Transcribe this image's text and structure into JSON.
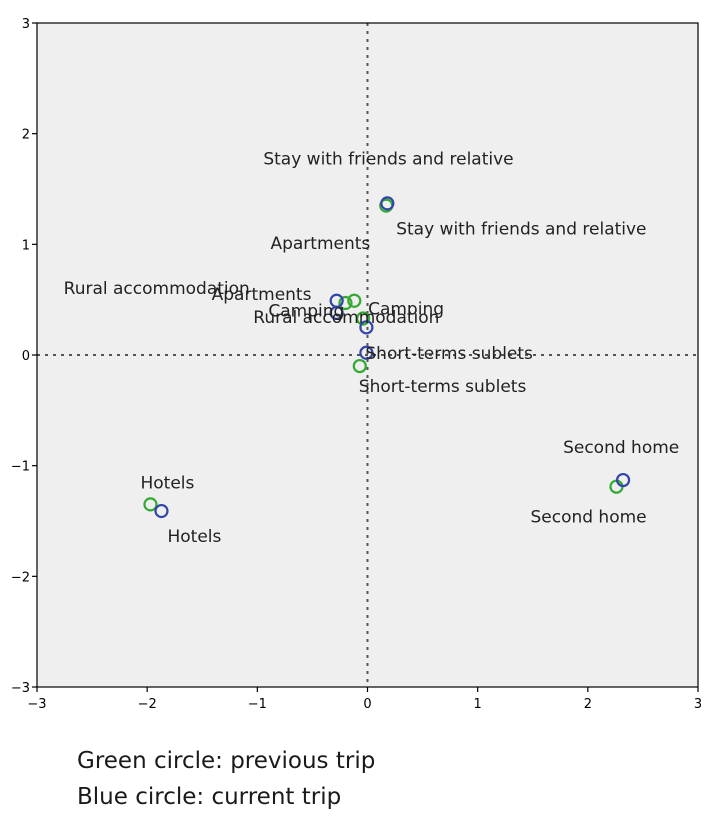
{
  "chart_data": {
    "type": "scatter",
    "title": "",
    "xlabel": "",
    "ylabel": "",
    "xlim": [
      -3,
      3
    ],
    "ylim": [
      -3,
      3
    ],
    "x_ticks": [
      -3,
      -2,
      -1,
      0,
      1,
      2,
      3
    ],
    "y_ticks": [
      -3,
      -2,
      -1,
      0,
      1,
      2,
      3
    ],
    "reference_lines": {
      "x": 0,
      "y": 0,
      "style": "dotted"
    },
    "grid": false,
    "background": "#efefef",
    "series": [
      {
        "color": "#33aa33",
        "marker": "open-circle",
        "points": [
          {
            "label": "Stay with friends and relative",
            "x": 0.17,
            "y": 1.35
          },
          {
            "label": "Rural accommodation",
            "x": -0.12,
            "y": 0.49
          },
          {
            "label": "Apartments",
            "x": -0.2,
            "y": 0.47
          },
          {
            "label": "Camping",
            "x": -0.04,
            "y": 0.33
          },
          {
            "label": "Short-terms sublets",
            "x": -0.07,
            "y": -0.1
          },
          {
            "label": "Hotels",
            "x": -1.97,
            "y": -1.35
          },
          {
            "label": "Second home",
            "x": 2.26,
            "y": -1.19
          }
        ]
      },
      {
        "color": "#3344aa",
        "marker": "open-circle",
        "points": [
          {
            "label": "Stay with friends and relative",
            "x": 0.18,
            "y": 1.37
          },
          {
            "label": "Rural accommodation",
            "x": -0.28,
            "y": 0.49
          },
          {
            "label": "Apartments",
            "x": -0.28,
            "y": 0.38
          },
          {
            "label": "Camping",
            "x": -0.01,
            "y": 0.25
          },
          {
            "label": "Short-terms sublets",
            "x": -0.01,
            "y": 0.02
          },
          {
            "label": "Hotels",
            "x": -1.87,
            "y": -1.41
          },
          {
            "label": "Second home",
            "x": 2.32,
            "y": -1.13
          }
        ]
      }
    ]
  },
  "captions": {
    "line1": "Green circle: previous trip",
    "line2": "Blue circle: current trip"
  }
}
